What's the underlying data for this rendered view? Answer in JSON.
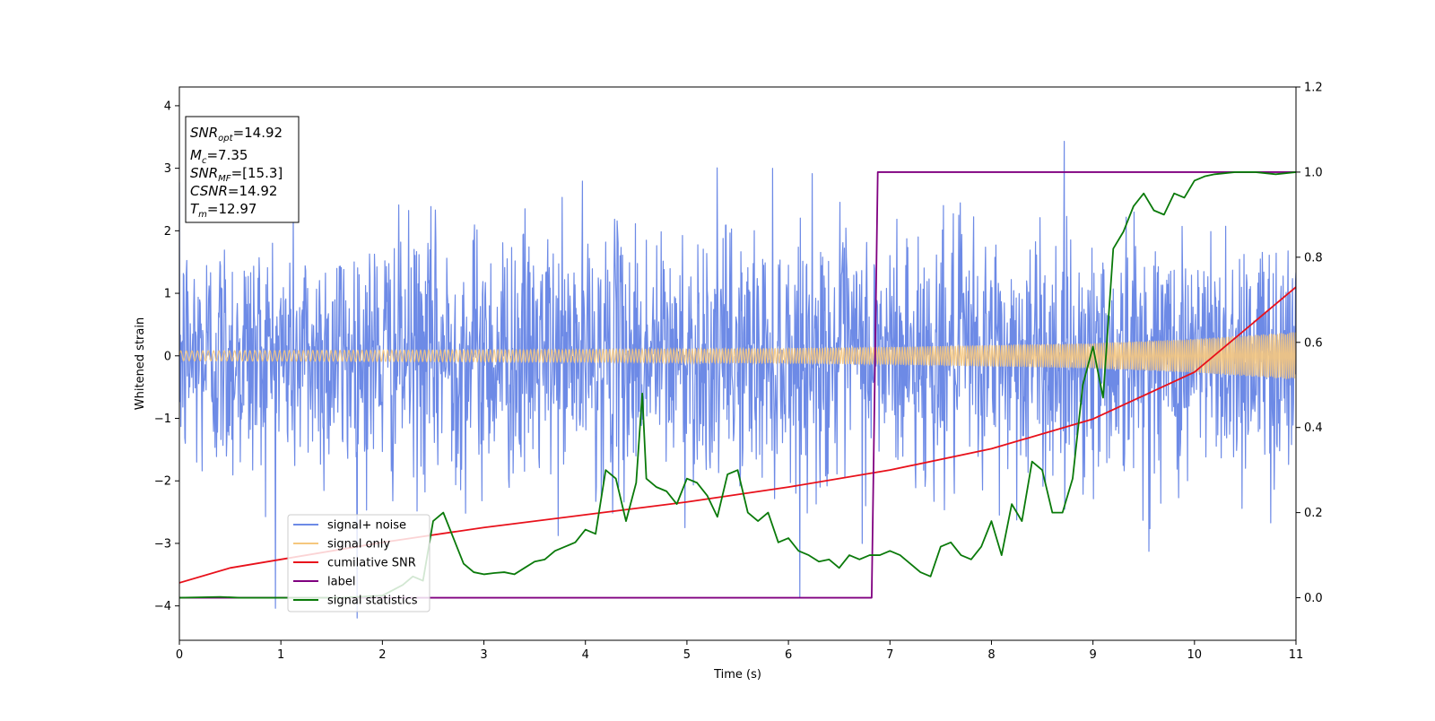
{
  "chart_data": {
    "type": "line",
    "title": "",
    "xlabel": "Time (s)",
    "ylabel": "Whitened strain",
    "y2label": "",
    "xlim": [
      0,
      11
    ],
    "ylim": [
      -4.55,
      4.3
    ],
    "y2lim": [
      -0.1,
      1.2
    ],
    "xticks": [
      "0",
      "1",
      "2",
      "3",
      "4",
      "5",
      "6",
      "7",
      "8",
      "9",
      "10",
      "11"
    ],
    "yticks": [
      "4",
      "3",
      "2",
      "1",
      "0",
      "−1",
      "−2",
      "−3",
      "−4"
    ],
    "y2ticks": [
      "0.0",
      "0.2",
      "0.4",
      "0.6",
      "0.8",
      "1.0",
      "1.2"
    ],
    "grid": false,
    "legend_position": "lower-left",
    "series": [
      {
        "name": "signal+ noise",
        "color": "#6d8ae6",
        "axis": "left",
        "style": "noise",
        "amplitude_sd": 1.0,
        "sample_rate_hz": 205
      },
      {
        "name": "signal only",
        "color": "#f5c77e",
        "axis": "left",
        "style": "chirp",
        "envelope": {
          "x": [
            0,
            2,
            4,
            6,
            7,
            8,
            9,
            10,
            11
          ],
          "y": [
            0.08,
            0.09,
            0.1,
            0.12,
            0.14,
            0.17,
            0.2,
            0.27,
            0.38
          ]
        }
      },
      {
        "name": "cumilative SNR",
        "color": "#e8111b",
        "axis": "right",
        "x": [
          0,
          0.5,
          1,
          2,
          3,
          4,
          5,
          6,
          7,
          8,
          9,
          10,
          11
        ],
        "y": [
          0.035,
          0.07,
          0.09,
          0.13,
          0.165,
          0.195,
          0.225,
          0.26,
          0.3,
          0.35,
          0.42,
          0.53,
          0.73
        ]
      },
      {
        "name": "label",
        "color": "#800080",
        "axis": "right",
        "x": [
          0,
          6.82,
          6.88,
          11
        ],
        "y": [
          0.0,
          0.0,
          1.0,
          1.0
        ]
      },
      {
        "name": "signal statistics",
        "color": "#0a7a0a",
        "axis": "right",
        "x": [
          0,
          0.4,
          0.6,
          1.0,
          1.6,
          2.0,
          2.2,
          2.3,
          2.4,
          2.5,
          2.6,
          2.7,
          2.8,
          2.9,
          3.0,
          3.1,
          3.2,
          3.3,
          3.4,
          3.5,
          3.6,
          3.7,
          3.8,
          3.9,
          4.0,
          4.1,
          4.2,
          4.3,
          4.4,
          4.5,
          4.56,
          4.6,
          4.7,
          4.8,
          4.9,
          5.0,
          5.1,
          5.2,
          5.3,
          5.4,
          5.5,
          5.6,
          5.7,
          5.8,
          5.9,
          6.0,
          6.1,
          6.2,
          6.3,
          6.4,
          6.5,
          6.6,
          6.7,
          6.8,
          6.9,
          7.0,
          7.1,
          7.2,
          7.3,
          7.4,
          7.5,
          7.6,
          7.7,
          7.8,
          7.9,
          8.0,
          8.1,
          8.2,
          8.3,
          8.4,
          8.5,
          8.6,
          8.7,
          8.8,
          8.9,
          9.0,
          9.1,
          9.2,
          9.3,
          9.4,
          9.5,
          9.6,
          9.7,
          9.8,
          9.9,
          10.0,
          10.1,
          10.2,
          10.4,
          10.6,
          10.8,
          11.0
        ],
        "y": [
          0.0,
          0.002,
          0.0,
          0.0,
          0.0,
          0.005,
          0.03,
          0.05,
          0.04,
          0.18,
          0.2,
          0.14,
          0.08,
          0.06,
          0.055,
          0.058,
          0.06,
          0.055,
          0.07,
          0.085,
          0.09,
          0.11,
          0.12,
          0.13,
          0.16,
          0.15,
          0.3,
          0.28,
          0.18,
          0.27,
          0.48,
          0.28,
          0.26,
          0.25,
          0.22,
          0.28,
          0.27,
          0.24,
          0.19,
          0.29,
          0.3,
          0.2,
          0.18,
          0.2,
          0.13,
          0.14,
          0.11,
          0.1,
          0.085,
          0.09,
          0.07,
          0.1,
          0.09,
          0.1,
          0.1,
          0.11,
          0.1,
          0.08,
          0.06,
          0.05,
          0.12,
          0.13,
          0.1,
          0.09,
          0.12,
          0.18,
          0.1,
          0.22,
          0.18,
          0.32,
          0.3,
          0.2,
          0.2,
          0.28,
          0.5,
          0.59,
          0.47,
          0.82,
          0.86,
          0.92,
          0.95,
          0.91,
          0.9,
          0.95,
          0.94,
          0.98,
          0.99,
          0.995,
          1.0,
          1.0,
          0.995,
          1.0
        ]
      }
    ],
    "annotations": [
      {
        "key": "SNR",
        "sub": "opt",
        "text": "=14.92"
      },
      {
        "key": "M",
        "sub": "c",
        "text": "=7.35"
      },
      {
        "key": "SNR",
        "sub": "MF",
        "text": "=[15.3]"
      },
      {
        "key": "CSNR",
        "sub": "",
        "text": "=14.92"
      },
      {
        "key": "T",
        "sub": "m",
        "text": "=12.97"
      }
    ]
  }
}
